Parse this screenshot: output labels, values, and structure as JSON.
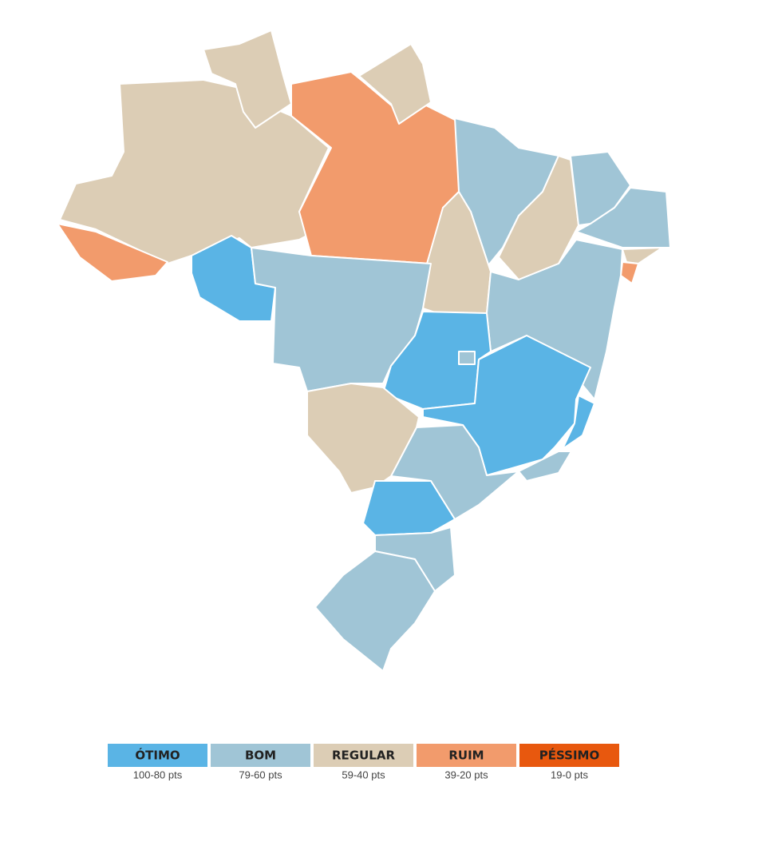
{
  "legend": [
    {
      "label": "ÓTIMO",
      "range": "100-80 pts",
      "color": "#5ab4e5"
    },
    {
      "label": "BOM",
      "range": "79-60 pts",
      "color": "#a0c5d6"
    },
    {
      "label": "REGULAR",
      "range": "59-40 pts",
      "color": "#dccdb5"
    },
    {
      "label": "RUIM",
      "range": "39-20 pts",
      "color": "#f29b6c"
    },
    {
      "label": "PÉSSIMO",
      "range": "19-0 pts",
      "color": "#e8580e"
    }
  ]
}
